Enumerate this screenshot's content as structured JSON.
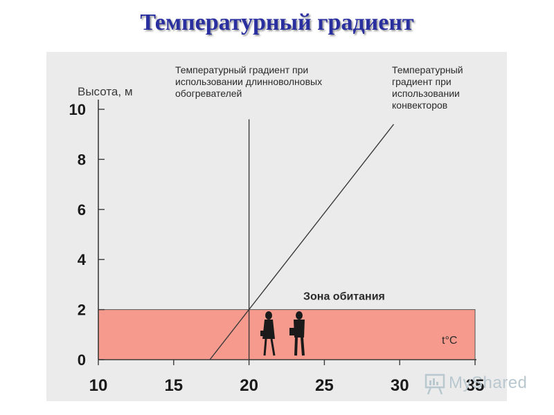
{
  "slide": {
    "title": "Температурный градиент"
  },
  "watermark": {
    "text": "MyShared",
    "icon": "presentation-board-icon"
  },
  "chart_data": {
    "type": "line",
    "ylabel": "Высота, м",
    "xlabel": "t°C",
    "xlim": [
      10,
      35
    ],
    "ylim": [
      0,
      10
    ],
    "x_ticks": [
      10,
      15,
      20,
      25,
      30,
      35
    ],
    "y_ticks": [
      0,
      2,
      4,
      6,
      8,
      10
    ],
    "grid": false,
    "series": [
      {
        "name": "Температурный градиент при использовании длинноволновых обогревателей",
        "points": [
          [
            20,
            0
          ],
          [
            20,
            9.6
          ]
        ],
        "color": "#3a3a3a"
      },
      {
        "name": "Температурный градиент при использовании конвекторов",
        "points": [
          [
            17.4,
            0
          ],
          [
            29.6,
            9.4
          ]
        ],
        "color": "#3a3a3a"
      }
    ],
    "annotations": [
      {
        "lines": [
          "Температурный градиент при",
          "использовании длинноволновых",
          "обогревателей"
        ]
      },
      {
        "lines": [
          "Температурный",
          "градиент при",
          "использовании",
          "конвекторов"
        ]
      }
    ],
    "zone": {
      "label": "Зона обитания",
      "y_from": 0,
      "y_to": 2,
      "color": "#f79a8e"
    }
  }
}
